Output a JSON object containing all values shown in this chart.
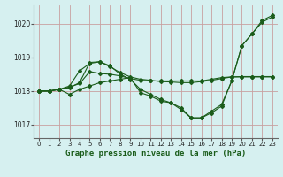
{
  "xlabel": "Graphe pression niveau de la mer (hPa)",
  "background_color": "#d6f0f0",
  "grid_color": "#c8a0a0",
  "line_color": "#1a5c1a",
  "xlim": [
    -0.5,
    23.5
  ],
  "ylim": [
    1016.6,
    1020.55
  ],
  "yticks": [
    1017,
    1018,
    1019,
    1020
  ],
  "xticks": [
    0,
    1,
    2,
    3,
    4,
    5,
    6,
    7,
    8,
    9,
    10,
    11,
    12,
    13,
    14,
    15,
    16,
    17,
    18,
    19,
    20,
    21,
    22,
    23
  ],
  "series": [
    [
      1018.0,
      1018.0,
      1018.05,
      1018.1,
      1018.25,
      1018.85,
      1018.87,
      1018.75,
      1018.5,
      1018.35,
      1018.05,
      1017.9,
      1017.75,
      1017.65,
      1017.45,
      1017.2,
      1017.2,
      1017.4,
      1017.6,
      1018.3,
      1019.35,
      1019.7,
      1020.1,
      1020.25
    ],
    [
      1018.0,
      1018.0,
      1018.05,
      1017.9,
      1018.05,
      1018.15,
      1018.25,
      1018.3,
      1018.35,
      1018.4,
      1017.95,
      1017.85,
      1017.7,
      1017.65,
      1017.5,
      1017.2,
      1017.2,
      1017.35,
      1017.55,
      1018.3,
      1019.35,
      1019.7,
      1020.05,
      1020.2
    ],
    [
      1018.0,
      1018.0,
      1018.05,
      1018.15,
      1018.6,
      1018.82,
      1018.87,
      1018.72,
      1018.55,
      1018.42,
      1018.35,
      1018.32,
      1018.28,
      1018.27,
      1018.25,
      1018.25,
      1018.28,
      1018.32,
      1018.37,
      1018.42,
      1018.43,
      1018.43,
      1018.43,
      1018.43
    ],
    [
      1018.0,
      1018.0,
      1018.05,
      1018.12,
      1018.22,
      1018.58,
      1018.52,
      1018.5,
      1018.45,
      1018.37,
      1018.32,
      1018.3,
      1018.3,
      1018.3,
      1018.3,
      1018.3,
      1018.3,
      1018.35,
      1018.4,
      1018.42,
      1018.42,
      1018.42,
      1018.42,
      1018.42
    ]
  ]
}
